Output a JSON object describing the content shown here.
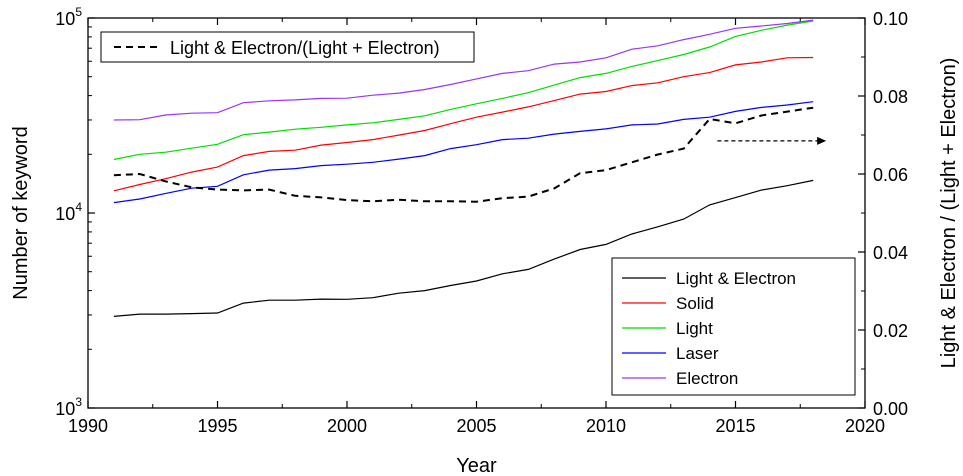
{
  "chart_data": {
    "type": "line",
    "xlabel": "Year",
    "ylabel_left": "Number of keyword",
    "ylabel_right": "Light & Electron / (Light + Electron)",
    "xlim": [
      1990,
      2020
    ],
    "ylim_left": [
      1000,
      100000
    ],
    "yscale_left": "log",
    "ylim_right": [
      0.0,
      0.1
    ],
    "x_ticks": [
      "1990",
      "1995",
      "2000",
      "2005",
      "2010",
      "2015",
      "2020"
    ],
    "y_left_ticks": [
      {
        "base": "10",
        "exp": "3"
      },
      {
        "base": "10",
        "exp": "4"
      },
      {
        "base": "10",
        "exp": "5"
      }
    ],
    "y_right_ticks": [
      "0.00",
      "0.02",
      "0.04",
      "0.06",
      "0.08",
      "0.10"
    ],
    "grid": false,
    "legend_top": {
      "placement": "top-left",
      "entries": [
        {
          "label": "Light & Electron/(Light + Electron)"
        }
      ]
    },
    "legend_bottom": {
      "placement": "bottom-right",
      "entries": [
        {
          "label": "Light & Electron"
        },
        {
          "label": "Solid"
        },
        {
          "label": "Light"
        },
        {
          "label": "Laser"
        },
        {
          "label": "Electron"
        }
      ]
    },
    "x": [
      1991,
      1992,
      1993,
      1994,
      1995,
      1996,
      1997,
      1998,
      1999,
      2000,
      2001,
      2002,
      2003,
      2004,
      2005,
      2006,
      2007,
      2008,
      2009,
      2010,
      2011,
      2012,
      2013,
      2014,
      2015,
      2016,
      2017,
      2018
    ],
    "series": [
      {
        "name": "Light & Electron",
        "axis": "left",
        "color": "#000000",
        "values": [
          2950,
          3030,
          3030,
          3050,
          3070,
          3450,
          3570,
          3570,
          3620,
          3610,
          3680,
          3880,
          4000,
          4250,
          4480,
          4880,
          5140,
          5800,
          6500,
          6900,
          7800,
          8500,
          9300,
          11000,
          12000,
          13100,
          13800,
          14700
        ]
      },
      {
        "name": "Solid",
        "axis": "left",
        "color": "#ff0000",
        "values": [
          13000,
          14000,
          15000,
          16200,
          17200,
          19700,
          20700,
          21000,
          22300,
          23000,
          23800,
          25100,
          26500,
          28700,
          31000,
          32900,
          35000,
          37700,
          40700,
          42000,
          45000,
          46500,
          50000,
          52500,
          57500,
          59500,
          62500,
          62700
        ]
      },
      {
        "name": "Light",
        "axis": "left",
        "color": "#00dd00",
        "values": [
          18800,
          20000,
          20500,
          21500,
          22500,
          25200,
          26000,
          26900,
          27500,
          28300,
          29000,
          30200,
          31500,
          34000,
          36300,
          38700,
          41400,
          45300,
          49500,
          52000,
          56500,
          60500,
          65000,
          71000,
          80500,
          86500,
          92000,
          96500
        ]
      },
      {
        "name": "Laser",
        "axis": "left",
        "color": "#0000ff",
        "values": [
          11300,
          11800,
          12600,
          13400,
          13700,
          15700,
          16600,
          16900,
          17500,
          17800,
          18200,
          18900,
          19700,
          21400,
          22400,
          23800,
          24200,
          25400,
          26200,
          27000,
          28300,
          28600,
          30200,
          31000,
          33200,
          34800,
          35800,
          37200
        ]
      },
      {
        "name": "Electron",
        "axis": "left",
        "color": "#9933ff",
        "values": [
          30000,
          30100,
          31800,
          32500,
          32700,
          36800,
          37600,
          38000,
          38700,
          38800,
          40200,
          41200,
          43000,
          45600,
          48700,
          52000,
          53700,
          58000,
          59500,
          62500,
          69200,
          72000,
          77500,
          82500,
          88500,
          91000,
          93700,
          97500
        ]
      },
      {
        "name": "Light & Electron/(Light + Electron)",
        "axis": "right",
        "color": "#000000",
        "dash": true,
        "values": [
          0.0597,
          0.06,
          0.0581,
          0.0566,
          0.056,
          0.0558,
          0.056,
          0.0544,
          0.054,
          0.0533,
          0.053,
          0.0534,
          0.053,
          0.053,
          0.0529,
          0.0538,
          0.0542,
          0.0563,
          0.0602,
          0.061,
          0.063,
          0.065,
          0.0665,
          0.0741,
          0.073,
          0.075,
          0.076,
          0.077
        ]
      }
    ],
    "annotations": [
      {
        "type": "arrow",
        "style": "dashed",
        "direction": "right",
        "axis": "right",
        "y": 0.0685,
        "x_from": 2014.3,
        "x_to": 2018.5
      }
    ]
  }
}
